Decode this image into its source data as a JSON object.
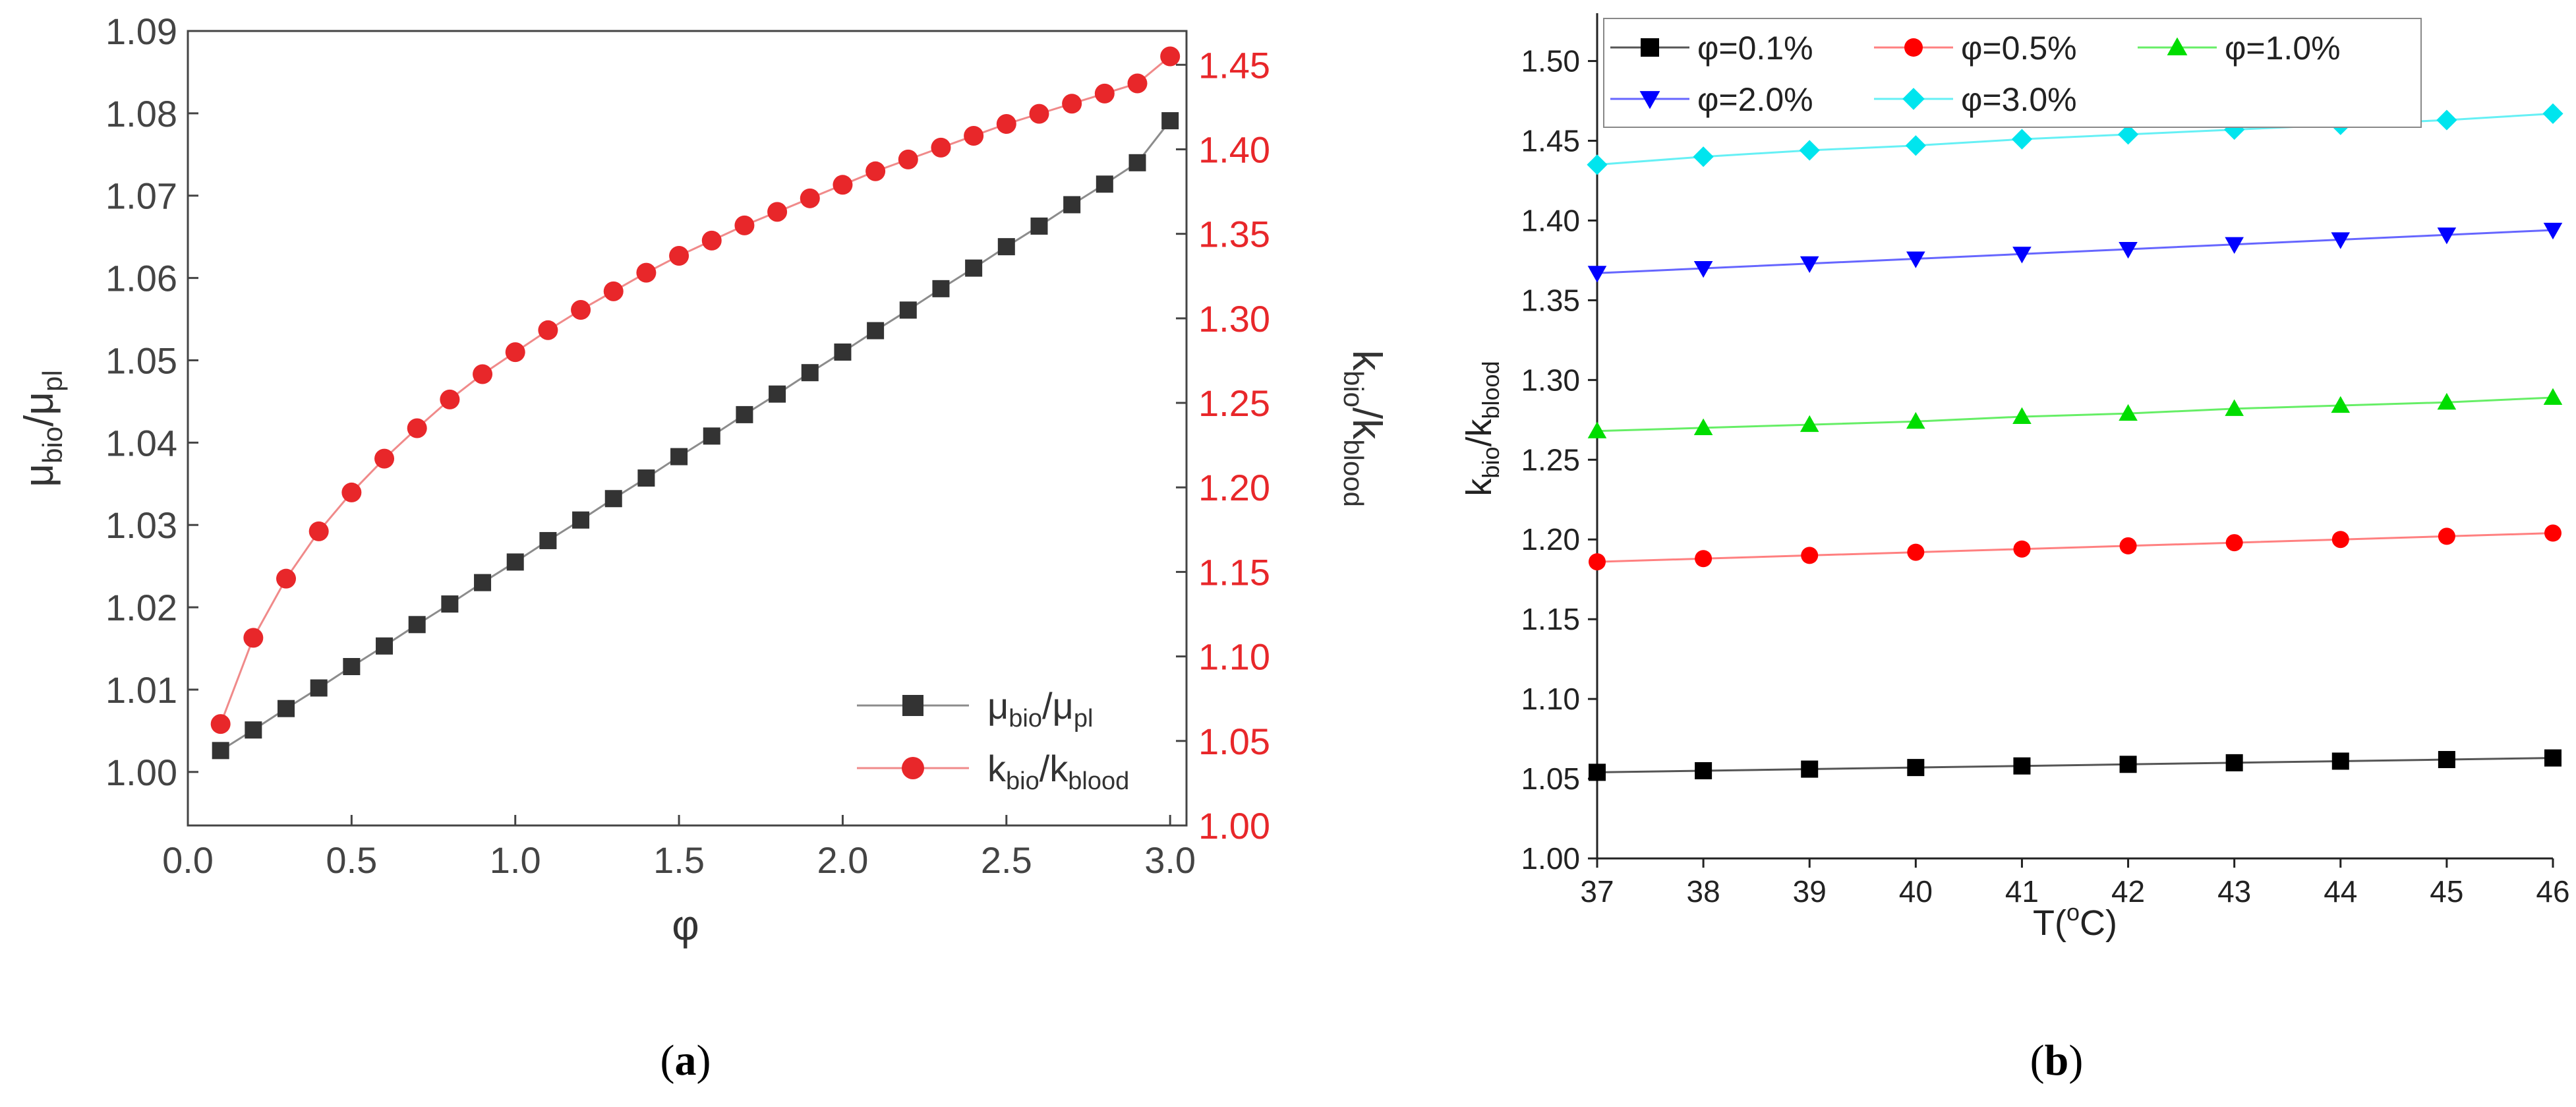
{
  "chart_data": [
    {
      "type": "line",
      "panel": "a",
      "caption_prefix": "(",
      "caption_letter": "a",
      "caption_suffix": ")",
      "xlabel": "φ",
      "x_ticks": [
        "0.0",
        "0.5",
        "1.0",
        "1.5",
        "2.0",
        "2.5",
        "3.0"
      ],
      "xlim": [
        0,
        3.05
      ],
      "y_left": {
        "label_base": "μ",
        "label_sub1": "bio",
        "label_sep": "/μ",
        "label_sub2": "pl",
        "lim": [
          0.9935,
          1.09
        ],
        "ticks": [
          "1.00",
          "1.01",
          "1.02",
          "1.03",
          "1.04",
          "1.05",
          "1.06",
          "1.07",
          "1.08",
          "1.09"
        ],
        "color": "#333333"
      },
      "y_right": {
        "label_base": "k",
        "label_sub1": "bio",
        "label_sep": "/k",
        "label_sub2": "blood",
        "lim": [
          1.0,
          1.47
        ],
        "ticks": [
          "1.00",
          "1.05",
          "1.10",
          "1.15",
          "1.20",
          "1.25",
          "1.30",
          "1.35",
          "1.40",
          "1.45"
        ],
        "color": "#e8272a"
      },
      "x": [
        0.1,
        0.2,
        0.3,
        0.4,
        0.5,
        0.6,
        0.7,
        0.8,
        0.9,
        1.0,
        1.1,
        1.2,
        1.3,
        1.4,
        1.5,
        1.6,
        1.7,
        1.8,
        1.9,
        2.0,
        2.1,
        2.2,
        2.3,
        2.4,
        2.5,
        2.6,
        2.7,
        2.8,
        2.9,
        3.0
      ],
      "series": [
        {
          "name_base": "μ",
          "name_sub1": "bio",
          "name_sep": "/μ",
          "name_sub2": "pl",
          "axis": "left",
          "marker": "square",
          "color": "#333333",
          "line_color": "#8c8c8c",
          "values": [
            1.0026,
            1.0051,
            1.0077,
            1.0102,
            1.0128,
            1.0153,
            1.0179,
            1.0204,
            1.023,
            1.0255,
            1.0281,
            1.0306,
            1.0332,
            1.0357,
            1.0383,
            1.0408,
            1.0434,
            1.0459,
            1.0485,
            1.051,
            1.0536,
            1.0561,
            1.0587,
            1.0612,
            1.0638,
            1.0663,
            1.0689,
            1.0714,
            1.074,
            1.0791
          ]
        },
        {
          "name_base": "k",
          "name_sub1": "bio",
          "name_sep": "/k",
          "name_sub2": "blood",
          "axis": "right",
          "marker": "circle",
          "color": "#e8272a",
          "line_color": "#f08a8a",
          "values": [
            1.06,
            1.111,
            1.146,
            1.174,
            1.197,
            1.217,
            1.235,
            1.252,
            1.267,
            1.28,
            1.293,
            1.305,
            1.316,
            1.327,
            1.337,
            1.346,
            1.355,
            1.363,
            1.371,
            1.379,
            1.387,
            1.394,
            1.401,
            1.408,
            1.415,
            1.421,
            1.427,
            1.433,
            1.439,
            1.455
          ]
        }
      ]
    },
    {
      "type": "line",
      "panel": "b",
      "caption_prefix": "(",
      "caption_letter": "b",
      "caption_suffix": ")",
      "xlabel_base": "T(",
      "xlabel_sup": "o",
      "xlabel_end": "C)",
      "ylabel_base": "k",
      "ylabel_sub1": "bio",
      "ylabel_sep": "/k",
      "ylabel_sub2": "blood",
      "x": [
        37,
        38,
        39,
        40,
        41,
        42,
        43,
        44,
        45,
        46
      ],
      "x_ticks": [
        "37",
        "38",
        "39",
        "40",
        "41",
        "42",
        "43",
        "44",
        "45",
        "46"
      ],
      "xlim": [
        37,
        46
      ],
      "ylim": [
        1.0,
        1.53
      ],
      "y_ticks": [
        "1.00",
        "1.05",
        "1.10",
        "1.15",
        "1.20",
        "1.25",
        "1.30",
        "1.35",
        "1.40",
        "1.45",
        "1.50"
      ],
      "series": [
        {
          "name": "φ=0.1%",
          "marker": "square",
          "color": "#000000",
          "line_color": "#555555",
          "values": [
            1.054,
            1.055,
            1.056,
            1.057,
            1.058,
            1.059,
            1.06,
            1.061,
            1.062,
            1.063
          ]
        },
        {
          "name": "φ=0.5%",
          "marker": "circle",
          "color": "#ff0000",
          "line_color": "#ff8080",
          "values": [
            1.186,
            1.188,
            1.19,
            1.192,
            1.194,
            1.196,
            1.198,
            1.2,
            1.202,
            1.204
          ]
        },
        {
          "name": "φ=1.0%",
          "marker": "triangle-up",
          "color": "#00dd00",
          "line_color": "#66ee66",
          "values": [
            1.268,
            1.27,
            1.272,
            1.274,
            1.277,
            1.279,
            1.282,
            1.284,
            1.286,
            1.289
          ]
        },
        {
          "name": "φ=2.0%",
          "marker": "triangle-down",
          "color": "#0000ff",
          "line_color": "#6666ff",
          "values": [
            1.367,
            1.37,
            1.373,
            1.376,
            1.379,
            1.382,
            1.385,
            1.388,
            1.391,
            1.394
          ]
        },
        {
          "name": "φ=3.0%",
          "marker": "diamond",
          "color": "#00e5ee",
          "line_color": "#66f0f5",
          "values": [
            1.435,
            1.44,
            1.444,
            1.447,
            1.451,
            1.454,
            1.457,
            1.46,
            1.463,
            1.467
          ]
        }
      ]
    }
  ]
}
